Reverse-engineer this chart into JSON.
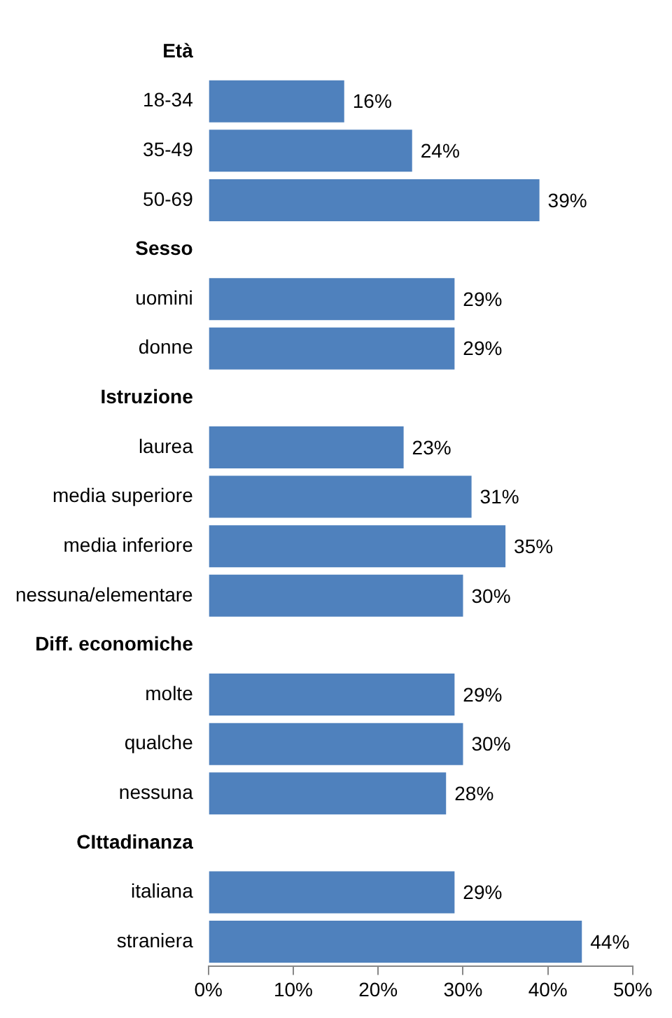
{
  "chart_data": {
    "type": "bar",
    "orientation": "horizontal",
    "categories": [
      "Età",
      "18-34",
      "35-49",
      "50-69",
      "Sesso",
      "uomini",
      "donne",
      "Istruzione",
      "laurea",
      "media superiore",
      "media inferiore",
      "nessuna/elementare",
      "Diff. economiche",
      "molte",
      "qualche",
      "nessuna",
      "CIttadinanza",
      "italiana",
      "straniera"
    ],
    "values": [
      null,
      16,
      24,
      39,
      null,
      29,
      29,
      null,
      23,
      31,
      35,
      30,
      null,
      29,
      30,
      28,
      null,
      29,
      44
    ],
    "value_labels": [
      null,
      "16%",
      "24%",
      "39%",
      null,
      "29%",
      "29%",
      null,
      "23%",
      "31%",
      "35%",
      "30%",
      null,
      "29%",
      "30%",
      "28%",
      null,
      "29%",
      "44%"
    ],
    "color": "#4f81bd",
    "xlim": [
      0,
      50
    ],
    "xticks": [
      {
        "value": 0,
        "label": "0%"
      },
      {
        "value": 10,
        "label": "10%"
      },
      {
        "value": 20,
        "label": "20%"
      },
      {
        "value": 30,
        "label": "30%"
      },
      {
        "value": 40,
        "label": "40%"
      },
      {
        "value": 50,
        "label": "50%"
      }
    ],
    "grid": false,
    "legend": false
  }
}
